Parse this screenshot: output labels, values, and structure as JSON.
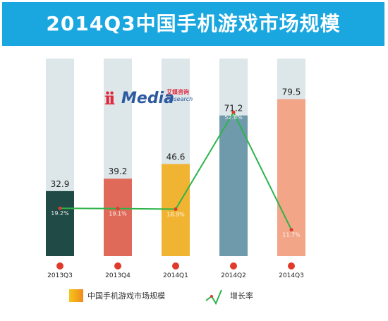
{
  "header": {
    "title": "2014Q3中国手机游戏市场规模"
  },
  "logo": {
    "main": "Media",
    "cn": "艾媒咨询",
    "en": "Research"
  },
  "legend": {
    "bar_label": "中国手机游戏市场规模",
    "line_label": "增长率"
  },
  "colors": {
    "header_bg": "#1aa7e0",
    "track": "#dde6e9",
    "bar_2013Q3": "#1f4a45",
    "bar_2013Q4": "#e06a5a",
    "bar_2014Q1": "#f0b432",
    "bar_2014Q2": "#6f9aab",
    "bar_2014Q3": "#f2a587",
    "line": "#2db34a",
    "marker": "#e03a2a"
  },
  "chart_data": {
    "type": "bar",
    "title": "2014Q3中国手机游戏市场规模",
    "categories": [
      "2013Q3",
      "2013Q4",
      "2014Q1",
      "2014Q2",
      "2014Q3"
    ],
    "series": [
      {
        "name": "中国手机游戏市场规模",
        "type": "bar",
        "values": [
          32.9,
          39.2,
          46.6,
          71.2,
          79.5
        ],
        "labels": [
          "32.9",
          "39.2",
          "46.6",
          "71.2",
          "79.5"
        ]
      },
      {
        "name": "增长率",
        "type": "line",
        "values": [
          19.2,
          19.1,
          18.9,
          52.8,
          11.7
        ],
        "labels": [
          "19.2%",
          "19.1%",
          "18.9%",
          "52.8%",
          "11.7%"
        ]
      }
    ],
    "ylim": [
      0,
      100
    ],
    "grid": false,
    "legend_position": "bottom"
  }
}
